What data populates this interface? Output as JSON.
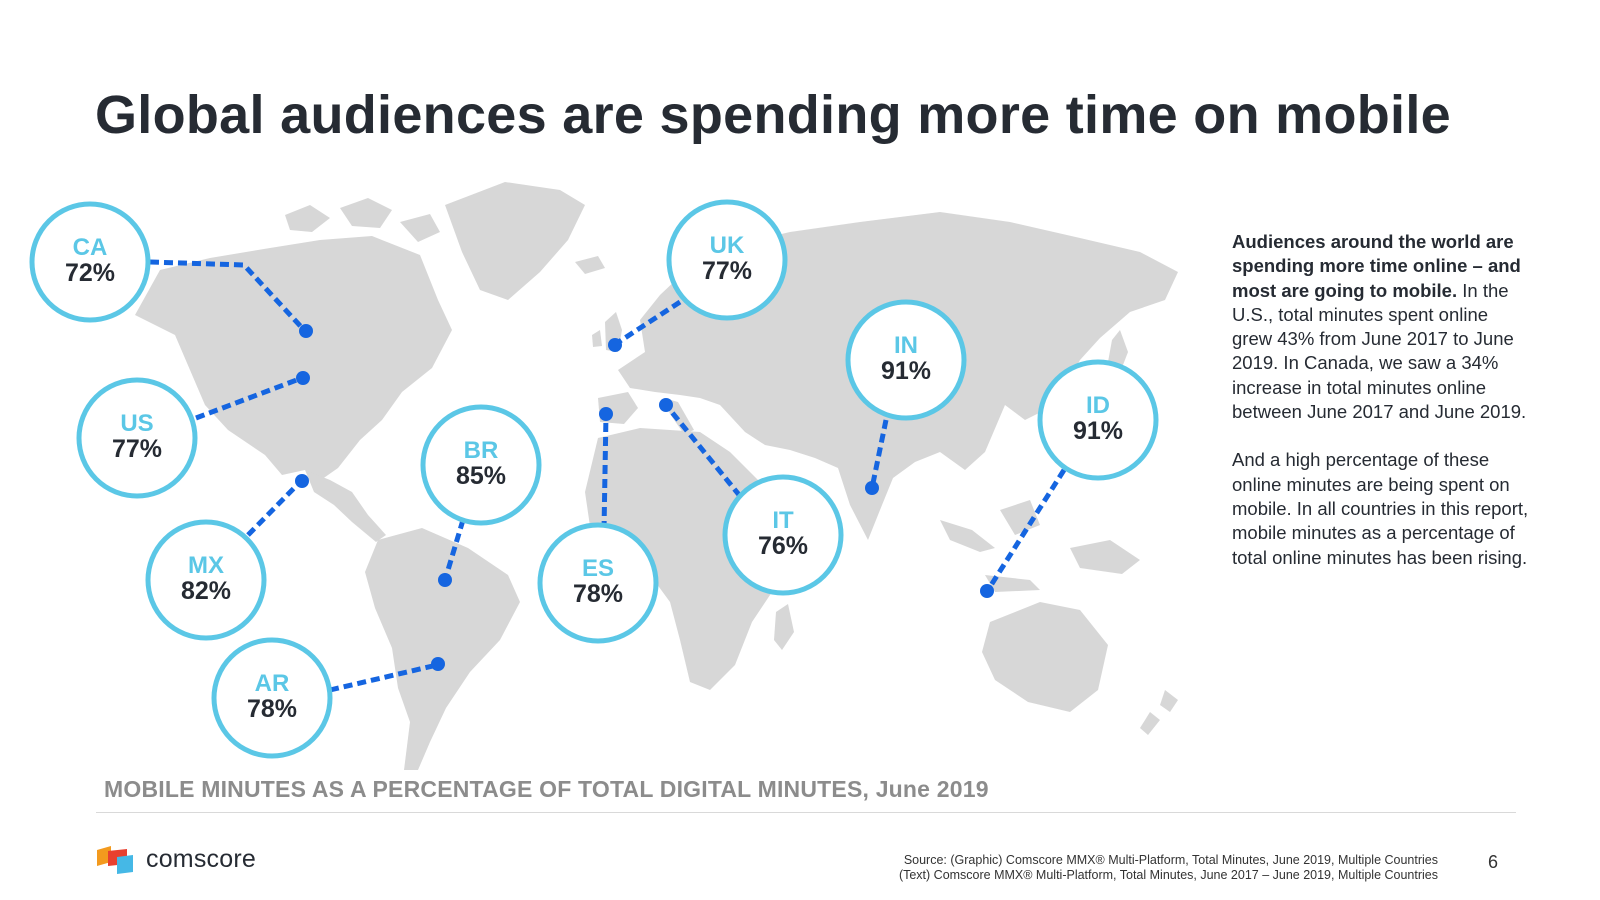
{
  "slide": {
    "title": "Global audiences are spending more time on mobile",
    "map_caption": "MOBILE MINUTES AS A PERCENTAGE OF TOTAL DIGITAL MINUTES, June 2019",
    "page_number": "6"
  },
  "countries": [
    {
      "code": "CA",
      "value": "72%"
    },
    {
      "code": "US",
      "value": "77%"
    },
    {
      "code": "MX",
      "value": "82%"
    },
    {
      "code": "AR",
      "value": "78%"
    },
    {
      "code": "BR",
      "value": "85%"
    },
    {
      "code": "ES",
      "value": "78%"
    },
    {
      "code": "UK",
      "value": "77%"
    },
    {
      "code": "IT",
      "value": "76%"
    },
    {
      "code": "IN",
      "value": "91%"
    },
    {
      "code": "ID",
      "value": "91%"
    }
  ],
  "sidebar": {
    "p1_bold": "Audiences around the world are spending more time online – and most are going to mobile.",
    "p1_rest": " In the U.S., total minutes spent online grew 43% from June 2017 to June 2019. In Canada, we saw a 34% increase in total minutes online between June 2017 and June 2019.",
    "p2": "And a high percentage of these online minutes are being spent on mobile. In all countries in this report, mobile minutes as a percentage of total online minutes has been rising."
  },
  "footer": {
    "brand": "comscore",
    "source_line1": "Source: (Graphic) Comscore MMX® Multi-Platform, Total Minutes, June 2019, Multiple Countries",
    "source_line2": "(Text) Comscore MMX® Multi-Platform, Total Minutes, June 2017 – June 2019, Multiple Countries"
  },
  "colors": {
    "accent_blue": "#1565e0",
    "bubble_cyan": "#5bc7e6",
    "map_gray": "#d7d7d7"
  }
}
